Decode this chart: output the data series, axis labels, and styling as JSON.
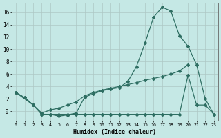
{
  "xlabel": "Humidex (Indice chaleur)",
  "bg_color": "#c5e8e5",
  "grid_color": "#adc8c5",
  "line_color": "#2e6e62",
  "xlim": [
    -0.5,
    23.5
  ],
  "ylim": [
    -1.5,
    17.5
  ],
  "ytick_vals": [
    0,
    2,
    4,
    6,
    8,
    10,
    12,
    14,
    16
  ],
  "ytick_labels": [
    "-0",
    "2",
    "4",
    "6",
    "8",
    "10",
    "12",
    "14",
    "16"
  ],
  "xtick_vals": [
    0,
    1,
    2,
    3,
    4,
    5,
    6,
    7,
    8,
    9,
    10,
    11,
    12,
    13,
    14,
    15,
    16,
    17,
    18,
    19,
    20,
    21,
    22,
    23
  ],
  "s1_x": [
    0,
    1,
    2,
    3,
    4,
    5,
    6,
    7,
    8,
    9,
    10,
    11,
    12,
    13,
    14,
    15,
    16,
    17,
    18,
    19,
    20,
    21,
    22,
    23
  ],
  "s1_y": [
    3.0,
    2.2,
    1.0,
    -0.5,
    -0.5,
    -0.8,
    -0.6,
    -0.3,
    2.3,
    2.8,
    3.3,
    3.6,
    3.8,
    4.8,
    7.2,
    11.0,
    15.2,
    16.8,
    16.2,
    12.2,
    10.5,
    7.5,
    2.0,
    -0.5
  ],
  "s2_x": [
    0,
    1,
    2,
    3,
    4,
    5,
    6,
    7,
    8,
    9,
    10,
    11,
    12,
    13,
    14,
    15,
    16,
    17,
    18,
    19,
    20
  ],
  "s2_y": [
    3.0,
    2.2,
    1.0,
    -0.3,
    0.2,
    0.5,
    1.0,
    1.5,
    2.5,
    3.0,
    3.4,
    3.7,
    4.0,
    4.3,
    4.6,
    5.0,
    5.3,
    5.6,
    6.0,
    6.5,
    7.5
  ],
  "s3_x": [
    0,
    2,
    3,
    4,
    5,
    6,
    7,
    8,
    9,
    10,
    11,
    12,
    13,
    14,
    15,
    16,
    17,
    18,
    19,
    20,
    21,
    22,
    23
  ],
  "s3_y": [
    3.0,
    1.0,
    -0.5,
    -0.5,
    -0.5,
    -0.5,
    -0.5,
    -0.5,
    -0.5,
    -0.5,
    -0.5,
    -0.5,
    -0.5,
    -0.5,
    -0.5,
    -0.5,
    -0.5,
    -0.5,
    -0.5,
    5.8,
    1.0,
    1.0,
    -0.5
  ]
}
